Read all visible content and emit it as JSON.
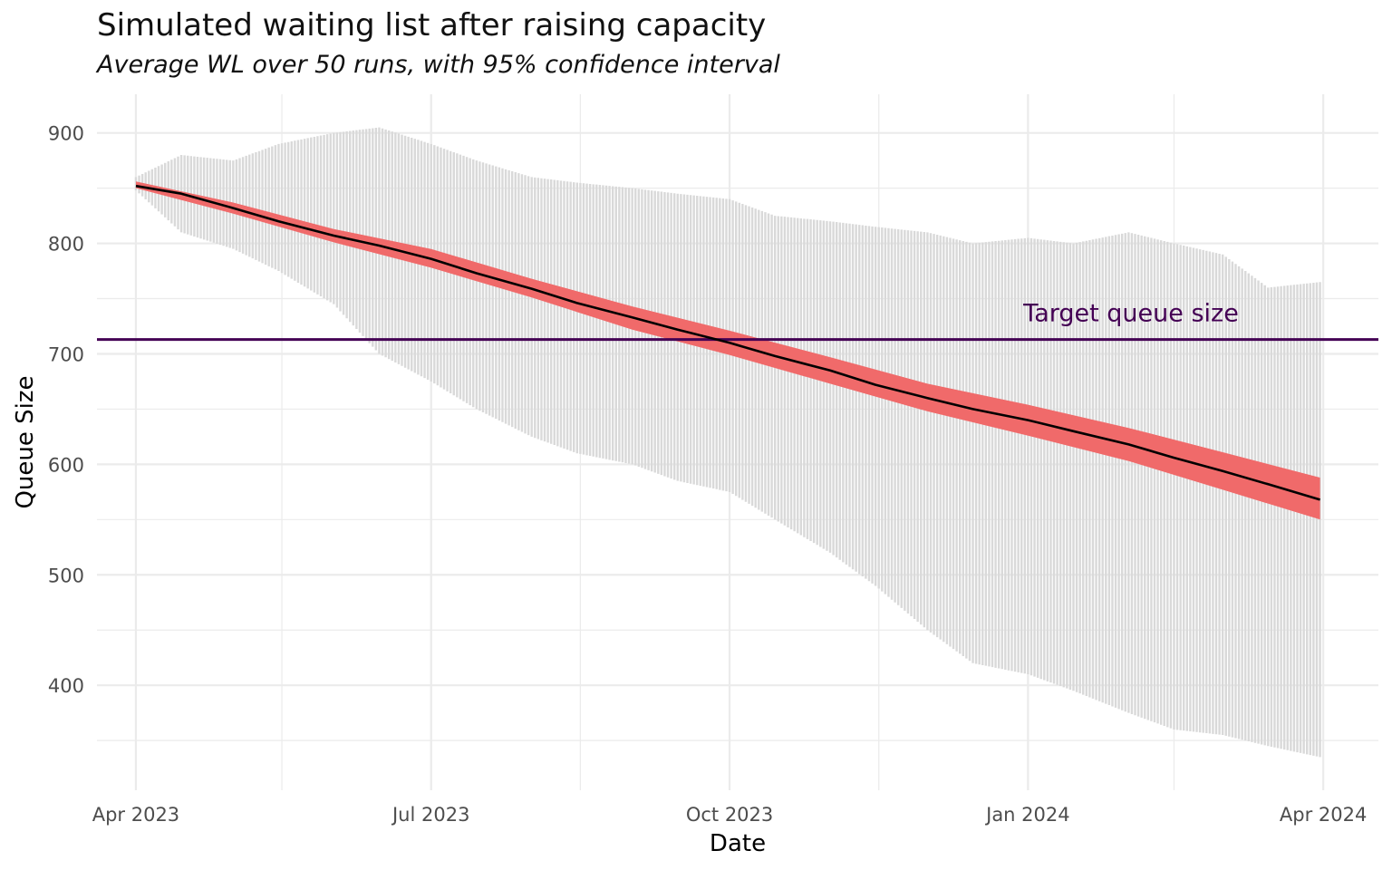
{
  "chart_data": {
    "type": "line",
    "title": "Simulated waiting list after raising capacity",
    "subtitle": "Average WL over 50 runs, with 95% confidence interval",
    "xlabel": "Date",
    "ylabel": "Queue Size",
    "x_ticks": [
      "Apr 2023",
      "Jul 2023",
      "Oct 2023",
      "Jan 2024",
      "Apr 2024"
    ],
    "y_ticks": [
      400,
      500,
      600,
      700,
      800,
      900
    ],
    "xlim": [
      "2023-03-20",
      "2024-04-18"
    ],
    "ylim": [
      305,
      935
    ],
    "grid": true,
    "legend": "none",
    "target": {
      "label": "Target queue size",
      "value": 713,
      "color": "#440154"
    },
    "colors": {
      "mean": "#000000",
      "ci": "#f06a6a",
      "runs": "#d9d9d9"
    },
    "series": [
      {
        "name": "mean",
        "x": [
          "2023-04-01",
          "2023-04-15",
          "2023-05-01",
          "2023-05-15",
          "2023-06-01",
          "2023-06-15",
          "2023-07-01",
          "2023-07-15",
          "2023-08-01",
          "2023-08-15",
          "2023-09-01",
          "2023-09-15",
          "2023-10-01",
          "2023-10-15",
          "2023-11-01",
          "2023-11-15",
          "2023-12-01",
          "2023-12-15",
          "2024-01-01",
          "2024-01-15",
          "2024-02-01",
          "2024-02-15",
          "2024-03-01",
          "2024-03-15",
          "2024-03-31"
        ],
        "y": [
          852,
          845,
          832,
          820,
          807,
          798,
          786,
          773,
          759,
          746,
          733,
          722,
          710,
          698,
          685,
          672,
          660,
          650,
          640,
          630,
          618,
          606,
          594,
          582,
          568
        ]
      }
    ],
    "confidence_interval": {
      "x": [
        "2023-04-01",
        "2023-05-01",
        "2023-06-01",
        "2023-07-01",
        "2023-08-01",
        "2023-09-01",
        "2023-10-01",
        "2023-11-01",
        "2023-12-01",
        "2024-01-01",
        "2024-02-01",
        "2024-03-01",
        "2024-03-31"
      ],
      "lower": [
        850,
        827,
        801,
        778,
        751,
        722,
        699,
        673,
        648,
        626,
        603,
        577,
        550
      ],
      "upper": [
        856,
        837,
        813,
        795,
        768,
        743,
        721,
        697,
        673,
        654,
        633,
        611,
        588
      ]
    },
    "runs_range": {
      "x": [
        "2023-04-01",
        "2023-04-15",
        "2023-05-01",
        "2023-05-15",
        "2023-06-01",
        "2023-06-15",
        "2023-07-01",
        "2023-07-15",
        "2023-08-01",
        "2023-08-15",
        "2023-09-01",
        "2023-09-15",
        "2023-10-01",
        "2023-10-15",
        "2023-11-01",
        "2023-11-15",
        "2023-12-01",
        "2023-12-15",
        "2024-01-01",
        "2024-01-15",
        "2024-02-01",
        "2024-02-15",
        "2024-03-01",
        "2024-03-15",
        "2024-03-31"
      ],
      "min": [
        848,
        810,
        795,
        775,
        745,
        700,
        675,
        650,
        625,
        610,
        600,
        585,
        575,
        550,
        520,
        490,
        450,
        420,
        410,
        395,
        375,
        360,
        355,
        345,
        335
      ],
      "max": [
        860,
        880,
        875,
        890,
        900,
        905,
        890,
        875,
        860,
        855,
        850,
        845,
        840,
        825,
        820,
        815,
        810,
        800,
        805,
        800,
        810,
        800,
        790,
        760,
        765
      ]
    }
  }
}
